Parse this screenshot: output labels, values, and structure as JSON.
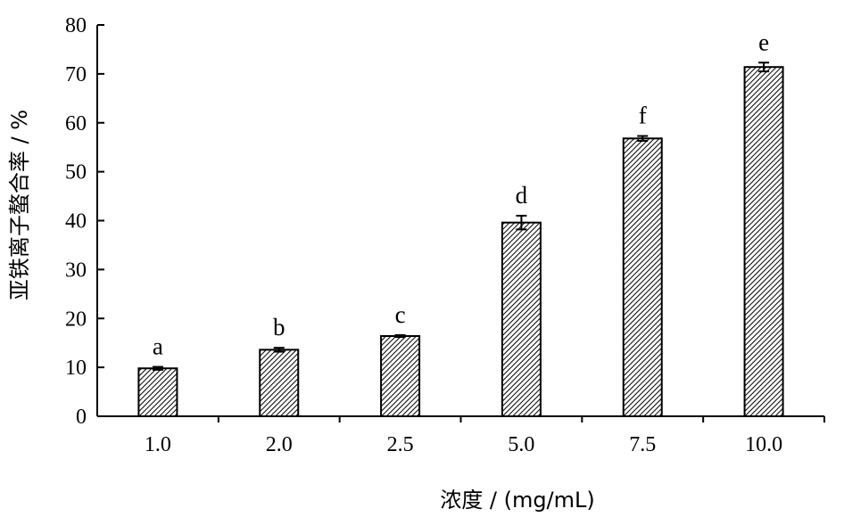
{
  "chart_data": {
    "type": "bar",
    "categories": [
      "1.0",
      "2.0",
      "2.5",
      "5.0",
      "7.5",
      "10.0"
    ],
    "series": [
      {
        "values": [
          9.8,
          13.6,
          16.4,
          39.6,
          56.8,
          71.4
        ],
        "errors": [
          0.3,
          0.4,
          0.2,
          1.4,
          0.5,
          0.9
        ],
        "labels": [
          "a",
          "b",
          "c",
          "d",
          "f",
          "e"
        ]
      }
    ],
    "xlabel": "浓度 / (mg/mL)",
    "ylabel": "亚铁离子螯合率 / %",
    "ylim": [
      0,
      80
    ],
    "yticks": [
      0,
      10,
      20,
      30,
      40,
      50,
      60,
      70,
      80
    ],
    "grid": false,
    "bar_fill": "hatched",
    "colors": {
      "bar_stroke": "#000000",
      "hatch": "#000000",
      "background": "#ffffff"
    }
  }
}
